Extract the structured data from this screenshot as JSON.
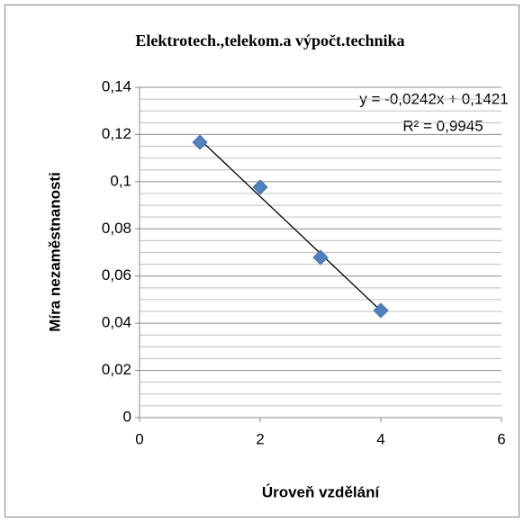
{
  "chart_data": {
    "type": "scatter",
    "title": "Elektrotech.,telekom.a výpočt.technika",
    "x_label": "Úroveň vzdělání",
    "y_label": "Míra nezaměstnanosti",
    "series": [
      {
        "name": "Míra nezaměstnanosti",
        "color": "#4f81bd",
        "x": [
          1,
          2,
          3,
          4
        ],
        "values": [
          0.1167,
          0.0977,
          0.0679,
          0.0454
        ]
      }
    ],
    "trendline": {
      "slope": -0.0242,
      "intercept": 0.1421,
      "equation": "y = -0,0242x + 0,1421",
      "r2": "R² = 0,9945"
    },
    "xlim": [
      0,
      6
    ],
    "xticks": [
      0,
      2,
      4,
      6
    ],
    "ylim": [
      0,
      0.14
    ],
    "yticks": [
      0,
      {
        "value": 0.02,
        "label": "0,02"
      },
      {
        "value": 0.04,
        "label": "0,04"
      },
      {
        "value": 0.06,
        "label": "0,06"
      },
      {
        "value": 0.08,
        "label": "0,08"
      },
      {
        "value": 0.1,
        "label": "0,1"
      },
      {
        "value": 0.12,
        "label": "0,12"
      },
      {
        "value": 0.14,
        "label": "0,14"
      }
    ],
    "grid": true
  }
}
